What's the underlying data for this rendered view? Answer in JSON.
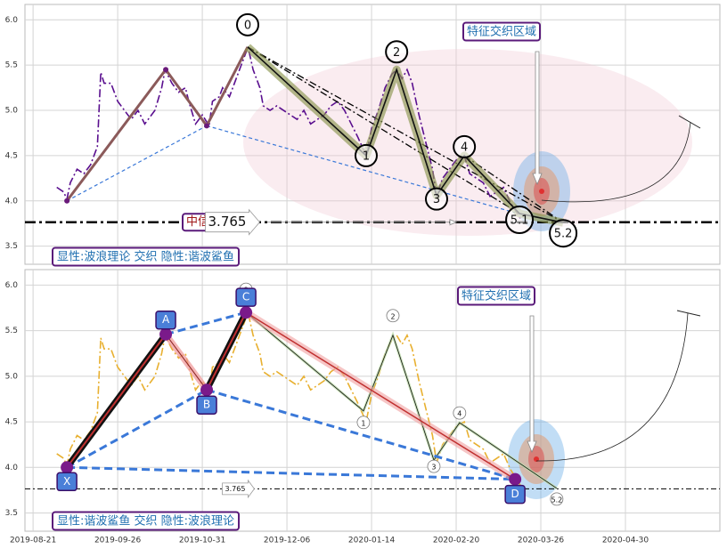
{
  "chart_data": [
    {
      "type": "line",
      "x": [
        7,
        9,
        10,
        11,
        13,
        15,
        17,
        19,
        20,
        21,
        23,
        25,
        27,
        29,
        31,
        33,
        35,
        36,
        38,
        39,
        41,
        43,
        45,
        46,
        48,
        50,
        52,
        53,
        55,
        56,
        58,
        60,
        62,
        63.5,
        65,
        67,
        68,
        70,
        72,
        74,
        76,
        78,
        80,
        82,
        84,
        86,
        88,
        90,
        92,
        94,
        96,
        98.4,
        100,
        102,
        104,
        106,
        107.4,
        109,
        110.5,
        112,
        114,
        116,
        118,
        119.2,
        121,
        123,
        125,
        127.4,
        129,
        131,
        133,
        135,
        137,
        139,
        141,
        142.4,
        144
      ],
      "series": [
        {
          "color": "#5a0f8f",
          "values": [
            4.15,
            4.1,
            4.02,
            4.2,
            4.35,
            4.3,
            4.4,
            4.6,
            5.42,
            5.3,
            5.3,
            5.1,
            5.0,
            4.9,
            5.0,
            4.85,
            4.95,
            5.0,
            5.25,
            5.45,
            5.3,
            5.2,
            5.25,
            5.1,
            4.85,
            4.95,
            4.83,
            5.1,
            5.15,
            5.25,
            5.15,
            5.35,
            5.55,
            5.7,
            5.45,
            5.25,
            5.05,
            5.0,
            5.05,
            5.0,
            4.95,
            4.9,
            5.0,
            4.85,
            4.9,
            4.95,
            5.05,
            5.1,
            5.0,
            4.85,
            4.7,
            4.5,
            4.8,
            5.0,
            5.25,
            5.4,
            5.45,
            5.35,
            5.45,
            5.3,
            4.95,
            4.65,
            4.35,
            4.05,
            4.25,
            4.35,
            4.45,
            4.5,
            4.3,
            4.25,
            4.2,
            4.05,
            4.1,
            4.15,
            3.98,
            3.9,
            3.8
          ]
        }
      ],
      "waves": {
        "labels": [
          "0",
          "1",
          "2",
          "3",
          "4",
          "5.1",
          "5.2"
        ],
        "x": [
          63.4,
          98.4,
          107.4,
          119.2,
          127.4,
          143.7,
          156.6
        ],
        "values": [
          5.7,
          4.5,
          5.45,
          4.06,
          4.5,
          3.86,
          3.76
        ]
      },
      "harmonic": {
        "x": [
          10,
          39.2,
          51.3,
          63.4,
          142.4
        ],
        "values": [
          4.0,
          5.45,
          4.83,
          5.7,
          3.87
        ]
      },
      "level": 3.765,
      "level_name": "中信",
      "zone_label": "特征交织区域",
      "legend_text": "显性:波浪理论 交织 隐性:谐波鲨鱼",
      "xlim": [
        -2.4,
        202.9
      ],
      "xticks": [
        0,
        25,
        50,
        75,
        100,
        125,
        150,
        175
      ],
      "xtick_labels": false,
      "ylim": [
        3.3,
        6.17
      ],
      "yticks": [
        3.5,
        {
          "value": 4,
          "label": "4.0"
        },
        4.5,
        {
          "value": 5,
          "label": "5.0"
        },
        5.5,
        {
          "value": 6,
          "label": "6.0"
        }
      ],
      "grid": true
    },
    {
      "type": "line",
      "x": [
        7,
        9,
        10,
        11,
        13,
        15,
        17,
        19,
        20,
        21,
        23,
        25,
        27,
        29,
        31,
        33,
        35,
        36,
        38,
        39,
        41,
        43,
        45,
        46,
        48,
        50,
        52,
        53,
        55,
        56,
        58,
        60,
        62,
        63.5,
        65,
        67,
        68,
        70,
        72,
        74,
        76,
        78,
        80,
        82,
        84,
        86,
        88,
        90,
        92,
        94,
        96,
        98.4,
        100,
        102,
        104,
        106,
        107.4,
        109,
        110.5,
        112,
        114,
        116,
        118,
        119.2,
        121,
        123,
        125,
        127.4,
        129,
        131,
        133,
        135,
        137,
        139,
        141,
        142.4,
        144
      ],
      "series": [
        {
          "color": "#e8b030",
          "values": [
            4.15,
            4.1,
            4.02,
            4.2,
            4.35,
            4.3,
            4.4,
            4.6,
            5.42,
            5.3,
            5.3,
            5.1,
            5.0,
            4.9,
            5.0,
            4.85,
            4.95,
            5.0,
            5.25,
            5.45,
            5.3,
            5.2,
            5.25,
            5.1,
            4.85,
            4.95,
            4.83,
            5.1,
            5.15,
            5.25,
            5.15,
            5.35,
            5.55,
            5.7,
            5.45,
            5.25,
            5.05,
            5.0,
            5.05,
            5.0,
            4.95,
            4.9,
            5.0,
            4.85,
            4.9,
            4.95,
            5.05,
            5.1,
            5.0,
            4.85,
            4.7,
            4.5,
            4.8,
            5.0,
            5.25,
            5.4,
            5.45,
            5.35,
            5.45,
            5.3,
            4.95,
            4.65,
            4.35,
            4.05,
            4.25,
            4.35,
            4.45,
            4.5,
            4.3,
            4.25,
            4.2,
            4.05,
            4.1,
            4.15,
            3.98,
            3.9,
            3.8
          ]
        }
      ],
      "waves": {
        "labels": [
          "0",
          "1",
          "2",
          "3",
          "4",
          "5.2"
        ],
        "x": [
          62.9,
          97.6,
          106.3,
          118.4,
          126,
          154.7
        ],
        "values": [
          5.7,
          4.62,
          5.45,
          4.08,
          4.49,
          3.77
        ]
      },
      "harmonic": {
        "labels": [
          "X",
          "A",
          "B",
          "C",
          "D"
        ],
        "x": [
          10,
          39.2,
          51.3,
          62.9,
          142.4
        ],
        "values": [
          4.0,
          5.46,
          4.85,
          5.7,
          3.87
        ]
      },
      "level": 3.765,
      "zone_label": "特征交织区域",
      "legend_text": "显性:谐波鲨鱼 交织 隐性:波浪理论",
      "xlim": [
        -2.4,
        202.9
      ],
      "xticks": [
        {
          "value": 0,
          "label": "2019-08-21"
        },
        {
          "value": 25,
          "label": "2019-09-26"
        },
        {
          "value": 50,
          "label": "2019-10-31"
        },
        {
          "value": 75,
          "label": "2019-12-06"
        },
        {
          "value": 100,
          "label": "2020-01-14"
        },
        {
          "value": 125,
          "label": "2020-02-20"
        },
        {
          "value": 150,
          "label": "2020-03-26"
        },
        {
          "value": 175,
          "label": "2020-04-30"
        }
      ],
      "xtick_labels": true,
      "ylim": [
        3.3,
        6.17
      ],
      "yticks": [
        3.5,
        {
          "value": 4,
          "label": "4.0"
        },
        4.5,
        {
          "value": 5,
          "label": "5.0"
        },
        5.5,
        {
          "value": 6,
          "label": "6.0"
        }
      ],
      "grid": true
    }
  ]
}
